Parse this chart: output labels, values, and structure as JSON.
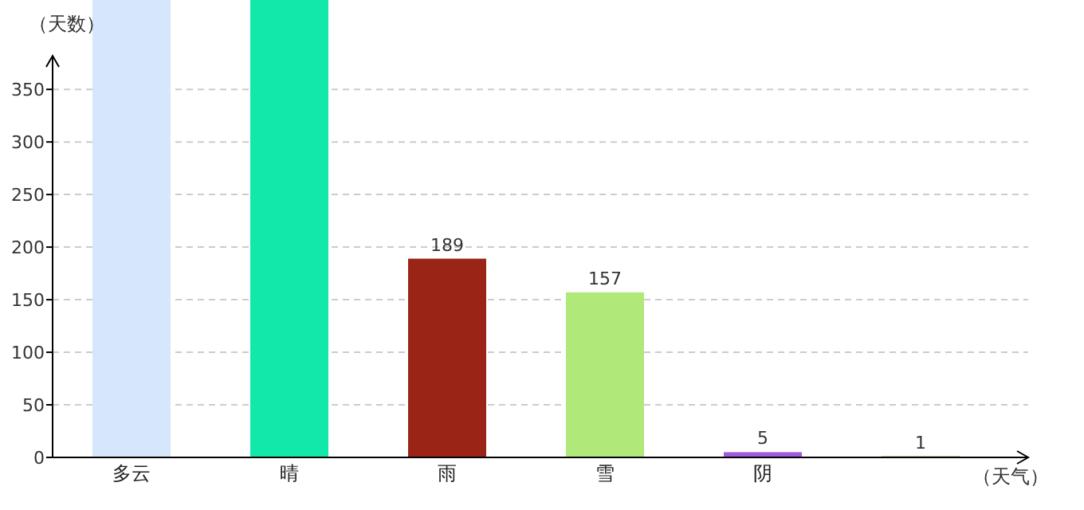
{
  "chart_data": {
    "type": "bar",
    "xlabel": "（天气）",
    "ylabel": "（天数）",
    "categories": [
      "多云",
      "晴",
      "雨",
      "雪",
      "阴",
      null
    ],
    "values": [
      435,
      435,
      189,
      157,
      5,
      1
    ],
    "colors": [
      "#d6e6fb",
      "#12e8a8",
      "#9a2416",
      "#b0e87a",
      "#a25adf",
      "#6b6b1a"
    ],
    "value_labels": [
      null,
      null,
      "189",
      "157",
      "5",
      "1"
    ],
    "ylim": [
      0,
      435
    ],
    "yticks": [
      0,
      50,
      100,
      150,
      200,
      250,
      300,
      350
    ],
    "grid": "y"
  }
}
